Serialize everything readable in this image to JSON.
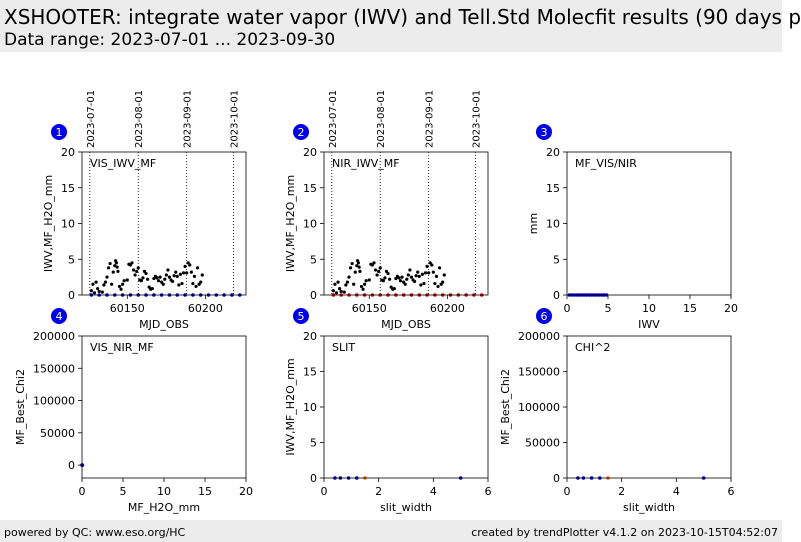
{
  "header": {
    "title": "XSHOOTER: integrate water vapor (IWV) and Tell.Std Molecfit results (90 days p",
    "subtitle": "Data range: 2023-07-01 ... 2023-09-30"
  },
  "footer": {
    "left": "powered by QC: www.eso.org/HC",
    "right": "created by trendPlotter v4.1.2 on 2023-10-15T04:52:07"
  },
  "colors": {
    "badge": "#0000ee",
    "series_black": "#000000",
    "series_blue": "#0000cc",
    "series_red": "#cc0000",
    "series_orange": "#ff6600"
  },
  "chart_data": [
    {
      "id": "1",
      "type": "scatter",
      "label": "VIS_IWV_MF",
      "xlabel": "MJD_OBS",
      "ylabel": "IWV,MF_H2O_mm",
      "xlim": [
        60121,
        60226
      ],
      "ylim": [
        0,
        20
      ],
      "xticks": [
        60150,
        60200
      ],
      "yticks": [
        0,
        5,
        10,
        15,
        20
      ],
      "date_markers": [
        {
          "x": 60126,
          "label": "2023-07-01"
        },
        {
          "x": 60157,
          "label": "2023-08-01"
        },
        {
          "x": 60188,
          "label": "2023-09-01"
        },
        {
          "x": 60218,
          "label": "2023-10-01"
        }
      ],
      "series": [
        {
          "color": "black",
          "points": [
            [
              60127,
              0.6
            ],
            [
              60128,
              1.5
            ],
            [
              60129,
              0.3
            ],
            [
              60130,
              1.8
            ],
            [
              60131,
              0.9
            ],
            [
              60132,
              0.5
            ],
            [
              60134,
              0.4
            ],
            [
              60135,
              1.4
            ],
            [
              60136,
              1.8
            ],
            [
              60137,
              2.5
            ],
            [
              60138,
              3.8
            ],
            [
              60139,
              4.4
            ],
            [
              60140,
              1.5
            ],
            [
              60141,
              3.2
            ],
            [
              60142,
              4.1
            ],
            [
              60142.5,
              4.8
            ],
            [
              60143,
              4.5
            ],
            [
              60143.5,
              3.9
            ],
            [
              60144,
              3.3
            ],
            [
              60145,
              1.2
            ],
            [
              60146,
              0.8
            ],
            [
              60147,
              1.5
            ],
            [
              60148,
              2.0
            ],
            [
              60150,
              2.1
            ],
            [
              60151,
              4.3
            ],
            [
              60152,
              4.2
            ],
            [
              60153,
              4.5
            ],
            [
              60154,
              3.5
            ],
            [
              60155,
              2.8
            ],
            [
              60156,
              3.3
            ],
            [
              60157,
              3.8
            ],
            [
              60158,
              2.1
            ],
            [
              60159,
              2.0
            ],
            [
              60160,
              2.4
            ],
            [
              60161,
              3.3
            ],
            [
              60162,
              3.0
            ],
            [
              60163,
              2.2
            ],
            [
              60164,
              1.1
            ],
            [
              60165,
              0.8
            ],
            [
              60166,
              0.9
            ],
            [
              60167,
              2.3
            ],
            [
              60168,
              2.6
            ],
            [
              60169,
              2.4
            ],
            [
              60170,
              2.0
            ],
            [
              60171,
              2.5
            ],
            [
              60172,
              1.8
            ],
            [
              60173,
              1.5
            ],
            [
              60174,
              2.2
            ],
            [
              60175,
              2.8
            ],
            [
              60176,
              3.5
            ],
            [
              60177,
              2.5
            ],
            [
              60178,
              2.1
            ],
            [
              60179,
              1.9
            ],
            [
              60180,
              2.7
            ],
            [
              60181,
              3.2
            ],
            [
              60182,
              2.6
            ],
            [
              60183,
              1.4
            ],
            [
              60184,
              2.9
            ],
            [
              60185,
              1.6
            ],
            [
              60186,
              3.1
            ],
            [
              60187,
              4.0
            ],
            [
              60188,
              3.1
            ],
            [
              60189,
              4.5
            ],
            [
              60190,
              4.2
            ],
            [
              60191,
              3.2
            ],
            [
              60192,
              1.6
            ],
            [
              60193,
              2.6
            ],
            [
              60194,
              1.2
            ],
            [
              60195,
              3.8
            ],
            [
              60196,
              1.5
            ],
            [
              60197,
              1.8
            ],
            [
              60198,
              2.8
            ]
          ]
        },
        {
          "color": "blue",
          "points": [
            [
              60127,
              0
            ],
            [
              60132,
              0
            ],
            [
              60137,
              0
            ],
            [
              60142,
              0
            ],
            [
              60147,
              0
            ],
            [
              60152,
              0
            ],
            [
              60157,
              0
            ],
            [
              60162,
              0
            ],
            [
              60167,
              0
            ],
            [
              60172,
              0
            ],
            [
              60177,
              0
            ],
            [
              60182,
              0
            ],
            [
              60187,
              0
            ],
            [
              60192,
              0
            ],
            [
              60197,
              0
            ],
            [
              60202,
              0
            ],
            [
              60207,
              0
            ],
            [
              60212,
              0
            ],
            [
              60217,
              0
            ],
            [
              60222,
              0
            ]
          ]
        }
      ]
    },
    {
      "id": "2",
      "type": "scatter",
      "label": "NIR_IWV_MF",
      "xlabel": "MJD_OBS",
      "ylabel": "IWV,MF_H2O_mm",
      "xlim": [
        60121,
        60226
      ],
      "ylim": [
        0,
        20
      ],
      "xticks": [
        60150,
        60200
      ],
      "yticks": [
        0,
        5,
        10,
        15,
        20
      ],
      "date_markers": [
        {
          "x": 60126,
          "label": "2023-07-01"
        },
        {
          "x": 60157,
          "label": "2023-08-01"
        },
        {
          "x": 60188,
          "label": "2023-09-01"
        },
        {
          "x": 60218,
          "label": "2023-10-01"
        }
      ],
      "series": [
        {
          "color": "black",
          "points": [
            [
              60127,
              0.6
            ],
            [
              60128,
              1.5
            ],
            [
              60129,
              0.3
            ],
            [
              60130,
              1.8
            ],
            [
              60131,
              0.9
            ],
            [
              60132,
              0.5
            ],
            [
              60134,
              0.4
            ],
            [
              60135,
              1.4
            ],
            [
              60136,
              1.8
            ],
            [
              60137,
              2.5
            ],
            [
              60138,
              3.8
            ],
            [
              60139,
              4.4
            ],
            [
              60140,
              1.5
            ],
            [
              60141,
              3.2
            ],
            [
              60142,
              4.1
            ],
            [
              60142.5,
              4.8
            ],
            [
              60143,
              4.5
            ],
            [
              60143.5,
              3.9
            ],
            [
              60144,
              3.3
            ],
            [
              60145,
              1.2
            ],
            [
              60146,
              0.8
            ],
            [
              60147,
              1.5
            ],
            [
              60148,
              2.0
            ],
            [
              60150,
              2.1
            ],
            [
              60151,
              4.3
            ],
            [
              60152,
              4.2
            ],
            [
              60153,
              4.5
            ],
            [
              60154,
              3.5
            ],
            [
              60155,
              2.8
            ],
            [
              60156,
              3.3
            ],
            [
              60157,
              3.8
            ],
            [
              60158,
              2.1
            ],
            [
              60159,
              2.0
            ],
            [
              60160,
              2.4
            ],
            [
              60161,
              3.3
            ],
            [
              60162,
              3.0
            ],
            [
              60163,
              2.2
            ],
            [
              60164,
              1.1
            ],
            [
              60165,
              0.8
            ],
            [
              60166,
              0.9
            ],
            [
              60167,
              2.3
            ],
            [
              60168,
              2.6
            ],
            [
              60169,
              2.4
            ],
            [
              60170,
              2.0
            ],
            [
              60171,
              2.5
            ],
            [
              60172,
              1.8
            ],
            [
              60173,
              1.5
            ],
            [
              60174,
              2.2
            ],
            [
              60175,
              2.8
            ],
            [
              60176,
              3.5
            ],
            [
              60177,
              2.5
            ],
            [
              60178,
              2.1
            ],
            [
              60179,
              1.9
            ],
            [
              60180,
              2.7
            ],
            [
              60181,
              3.2
            ],
            [
              60182,
              2.6
            ],
            [
              60183,
              1.4
            ],
            [
              60184,
              2.9
            ],
            [
              60185,
              1.6
            ],
            [
              60186,
              3.1
            ],
            [
              60187,
              4.0
            ],
            [
              60188,
              3.1
            ],
            [
              60189,
              4.5
            ],
            [
              60190,
              4.2
            ],
            [
              60191,
              3.2
            ],
            [
              60192,
              1.6
            ],
            [
              60193,
              2.6
            ],
            [
              60194,
              1.2
            ],
            [
              60195,
              3.8
            ],
            [
              60196,
              1.5
            ],
            [
              60197,
              1.8
            ],
            [
              60198,
              2.8
            ]
          ]
        },
        {
          "color": "red",
          "points": [
            [
              60127,
              0
            ],
            [
              60132,
              0
            ],
            [
              60137,
              0
            ],
            [
              60142,
              0
            ],
            [
              60147,
              0
            ],
            [
              60152,
              0
            ],
            [
              60157,
              0
            ],
            [
              60162,
              0
            ],
            [
              60167,
              0
            ],
            [
              60172,
              0
            ],
            [
              60177,
              0
            ],
            [
              60182,
              0
            ],
            [
              60187,
              0
            ],
            [
              60192,
              0
            ],
            [
              60197,
              0
            ],
            [
              60202,
              0
            ],
            [
              60207,
              0
            ],
            [
              60212,
              0
            ],
            [
              60217,
              0
            ],
            [
              60222,
              0
            ]
          ]
        }
      ]
    },
    {
      "id": "3",
      "type": "scatter",
      "label": "MF_VIS/NIR",
      "xlabel": "IWV",
      "ylabel": "mm",
      "xlim": [
        0,
        20
      ],
      "ylim": [
        0,
        20
      ],
      "xticks": [
        0,
        5,
        10,
        15,
        20
      ],
      "yticks": [
        0,
        5,
        10,
        15,
        20
      ],
      "series": [
        {
          "color": "blue",
          "points": [
            [
              0.3,
              0
            ],
            [
              0.6,
              0
            ],
            [
              0.9,
              0
            ],
            [
              1.2,
              0
            ],
            [
              1.5,
              0
            ],
            [
              1.8,
              0
            ],
            [
              2.1,
              0
            ],
            [
              2.4,
              0
            ],
            [
              2.7,
              0
            ],
            [
              3.0,
              0
            ],
            [
              3.3,
              0
            ],
            [
              3.6,
              0
            ],
            [
              3.9,
              0
            ],
            [
              4.2,
              0
            ],
            [
              4.5,
              0
            ],
            [
              4.8,
              0
            ]
          ]
        }
      ]
    },
    {
      "id": "4",
      "type": "scatter",
      "label": "VIS_NIR_MF",
      "xlabel": "MF_H2O_mm",
      "ylabel": "MF_Best_Chi2",
      "xlim": [
        0,
        20
      ],
      "ylim": [
        -20000,
        200000
      ],
      "xticks": [
        0,
        5,
        10,
        15,
        20
      ],
      "yticks": [
        0,
        50000,
        100000,
        150000,
        200000
      ],
      "series": [
        {
          "color": "blue",
          "points": [
            [
              0,
              0
            ],
            [
              0.05,
              0
            ]
          ]
        }
      ]
    },
    {
      "id": "5",
      "type": "scatter",
      "label": "SLIT",
      "xlabel": "slit_width",
      "ylabel": "IWV,MF_H2O_mm",
      "xlim": [
        0,
        6
      ],
      "ylim": [
        0,
        20
      ],
      "xticks": [
        0,
        2,
        4,
        6
      ],
      "yticks": [
        0,
        5,
        10,
        15,
        20
      ],
      "series": [
        {
          "color": "blue",
          "points": [
            [
              0.4,
              0
            ],
            [
              0.6,
              0
            ],
            [
              0.9,
              0
            ],
            [
              1.2,
              0
            ],
            [
              5.0,
              0
            ]
          ]
        },
        {
          "color": "orange",
          "points": [
            [
              1.5,
              0
            ]
          ]
        }
      ]
    },
    {
      "id": "6",
      "type": "scatter",
      "label": "CHI^2",
      "xlabel": "slit_width",
      "ylabel": "MF_Best_Chi2",
      "xlim": [
        0,
        6
      ],
      "ylim": [
        0,
        200000
      ],
      "xticks": [
        0,
        2,
        4,
        6
      ],
      "yticks": [
        0,
        50000,
        100000,
        150000,
        200000
      ],
      "series": [
        {
          "color": "blue",
          "points": [
            [
              0.4,
              0
            ],
            [
              0.6,
              0
            ],
            [
              0.9,
              0
            ],
            [
              1.2,
              0
            ],
            [
              5.0,
              0
            ]
          ]
        },
        {
          "color": "orange",
          "points": [
            [
              1.5,
              0
            ]
          ]
        }
      ]
    }
  ]
}
